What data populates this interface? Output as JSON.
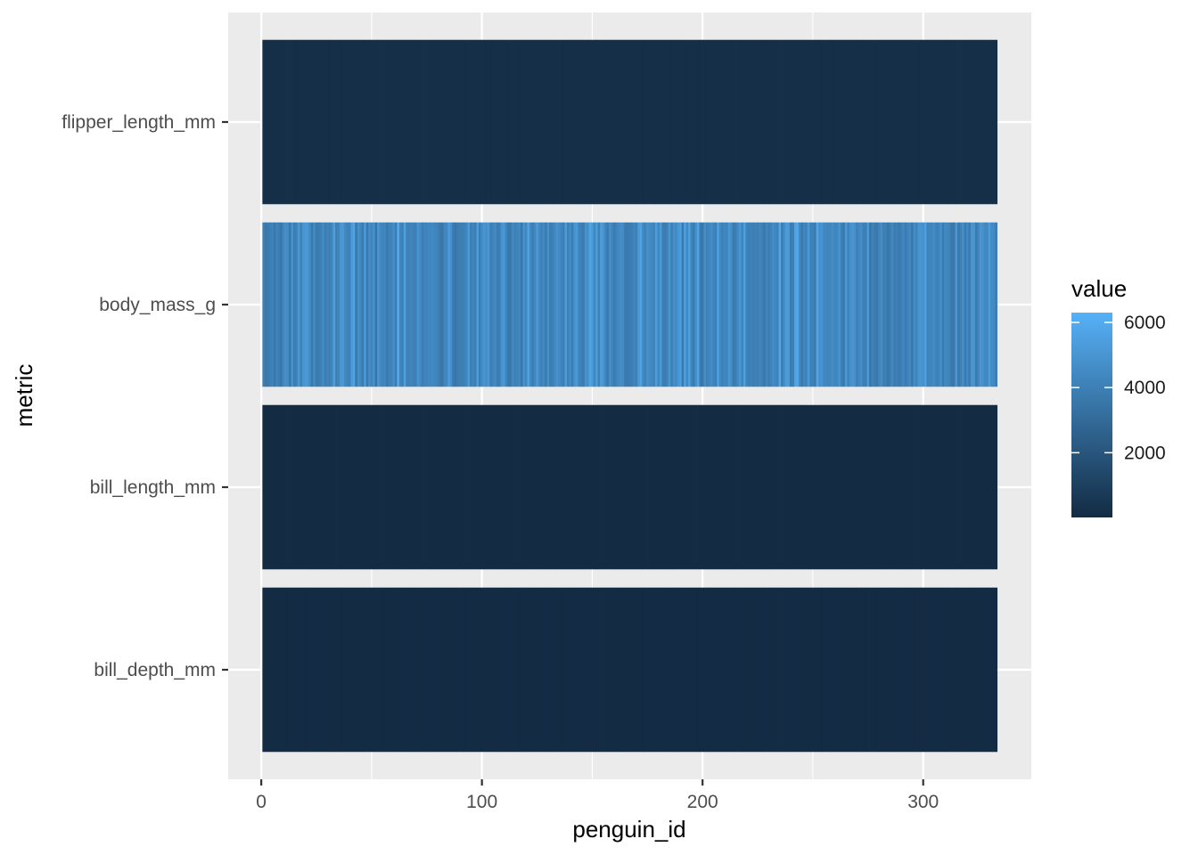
{
  "chart_data": {
    "type": "heatmap",
    "title": "",
    "xlabel": "penguin_id",
    "ylabel": "metric",
    "x_range": [
      1,
      333
    ],
    "xlim": [
      -15,
      349
    ],
    "x_ticks": [
      "0",
      "100",
      "200",
      "300"
    ],
    "rows": [
      "bill_depth_mm",
      "bill_length_mm",
      "body_mass_g",
      "flipper_length_mm"
    ],
    "row_value_ranges": {
      "bill_depth_mm": [
        13.1,
        21.5
      ],
      "bill_length_mm": [
        32.1,
        59.6
      ],
      "body_mass_g": [
        2700,
        6300
      ],
      "flipper_length_mm": [
        172,
        231
      ]
    },
    "legend": {
      "title": "value",
      "ticks": [
        "2000",
        "4000",
        "6000"
      ],
      "range": [
        13.1,
        6300
      ],
      "low_color": "#132B43",
      "high_color": "#56B1F7",
      "placement": "right"
    },
    "grid": true,
    "panel_background": "#EBEBEB"
  }
}
